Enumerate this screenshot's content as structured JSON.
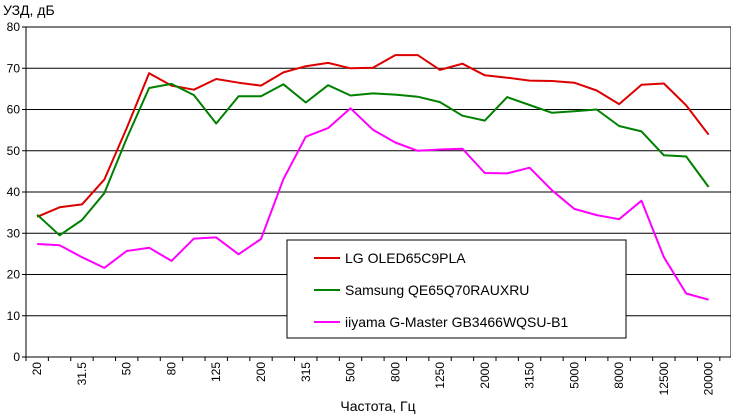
{
  "chart_data": {
    "type": "line",
    "title": "",
    "ylabel": "УЗД, дБ",
    "xlabel": "Частота, Гц",
    "ylim": [
      0,
      80
    ],
    "yticks": [
      0,
      10,
      20,
      30,
      40,
      50,
      60,
      70,
      80
    ],
    "grid": true,
    "legend_position": "bottom-center",
    "categories": [
      "20",
      "25",
      "31.5",
      "40",
      "50",
      "63",
      "80",
      "100",
      "125",
      "160",
      "200",
      "250",
      "315",
      "400",
      "500",
      "630",
      "800",
      "1000",
      "1250",
      "1600",
      "2000",
      "2500",
      "3150",
      "4000",
      "5000",
      "6300",
      "8000",
      "10000",
      "12500",
      "16000",
      "20000"
    ],
    "tick_labels": [
      "20",
      "",
      "31.5",
      "",
      "50",
      "",
      "80",
      "",
      "125",
      "",
      "200",
      "",
      "315",
      "",
      "500",
      "",
      "800",
      "",
      "1250",
      "",
      "2000",
      "",
      "3150",
      "",
      "5000",
      "",
      "8000",
      "",
      "12500",
      "",
      "20000"
    ],
    "series": [
      {
        "name": "LG OLED65C9PLA",
        "color": "#dd0000",
        "values": [
          34,
          36.3,
          37,
          43,
          55.5,
          68.8,
          65.8,
          64.8,
          67.4,
          66.5,
          65.8,
          69,
          70.5,
          71.3,
          70,
          70.1,
          73.2,
          73.2,
          69.6,
          71.1,
          68.3,
          67.7,
          67,
          66.9,
          66.5,
          64.6,
          61.3,
          66,
          66.3,
          61,
          53.9
        ]
      },
      {
        "name": "Samsung QE65Q70RAUXRU",
        "color": "#008000",
        "values": [
          34.5,
          29.5,
          33.2,
          39.7,
          53,
          65.2,
          66.2,
          63.5,
          56.6,
          63.2,
          63.2,
          66.1,
          61.7,
          65.9,
          63.4,
          63.9,
          63.6,
          63.1,
          61.8,
          58.5,
          57.3,
          63,
          61.1,
          59.2,
          59.6,
          60,
          56,
          54.7,
          48.9,
          48.6,
          41.2
        ]
      },
      {
        "name": "iiyama G-Master GB3466WQSU-B1",
        "color": "#ff00ff",
        "values": [
          27.4,
          27.1,
          24.2,
          21.6,
          25.7,
          26.5,
          23.3,
          28.7,
          29,
          24.9,
          28.6,
          43.1,
          53.4,
          55.5,
          60.3,
          55.1,
          52,
          50,
          50.3,
          50.5,
          44.6,
          44.5,
          45.9,
          40.4,
          35.9,
          34.4,
          33.4,
          37.9,
          24.2,
          15.4,
          13.9
        ]
      }
    ]
  }
}
